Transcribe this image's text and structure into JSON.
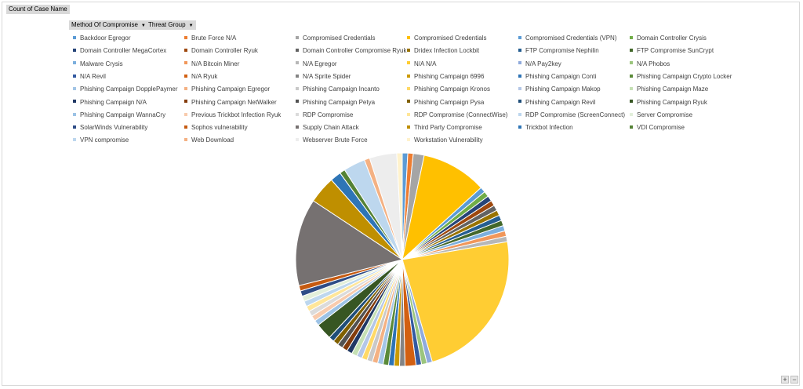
{
  "pivot": {
    "value_field": "Count of Case Name",
    "row_fields": [
      "Method Of Compromise",
      "Threat Group"
    ]
  },
  "chart_data": {
    "type": "pie",
    "categories": [
      "Backdoor Egregor",
      "Brute Force N/A",
      "Compromised Credentials",
      "Compromised Credentials",
      "Compromised Credentials (VPN)",
      "Domain Controller Crysis",
      "Domain Controller MegaCortex",
      "Domain Controller Ryuk",
      "Domain Controller Compromise Ryuk",
      "Dridex Infection Lockbit",
      "FTP Compromise Nephilin",
      "FTP Compromise SunCrypt",
      "Malware Crysis",
      "N/A Bitcoin Miner",
      "N/A Egregor",
      "N/A N/A",
      "N/A Pay2key",
      "N/A Phobos",
      "N/A Revil",
      "N/A Ryuk",
      "N/A Sprite Spider",
      "Phishing Campaign 6996",
      "Phishing Campaign Conti",
      "Phishing Campaign Crypto Locker",
      "Phishing Campaign DopplePaymer",
      "Phishing Campaign Egregor",
      "Phishing Campaign Incanto",
      "Phishing Campaign Kronos",
      "Phishing Campaign Makop",
      "Phishing Campaign Maze",
      "Phishing Campaign N/A",
      "Phishing Campaign NetWalker",
      "Phishing Campaign Petya",
      "Phishing Campaign Pysa",
      "Phishing Campaign Revil",
      "Phishing Campaign Ryuk",
      "Phishing Campaign WannaCry",
      "Previous Trickbot Infection Ryuk",
      "RDP Compromise",
      "RDP Compromise (ConnectWise)",
      "RDP Compromise (ScreenConnect)",
      "Server Compromise",
      "SolarWinds Vulnerability",
      "Sophos vulnerability",
      "Supply Chain Attack",
      "Third Party Compromise",
      "Trickbot Infection",
      "VDI Compromise",
      "VPN compromise",
      "Web Download",
      "Webserver Brute Force",
      "Workstation Vulnerability"
    ],
    "values": [
      1,
      1,
      2,
      12,
      1,
      1,
      1,
      1,
      1,
      1,
      1,
      1,
      1,
      1,
      1,
      28,
      1,
      1,
      1,
      2,
      1,
      1,
      1,
      1,
      1,
      1,
      1,
      1,
      1,
      1,
      1,
      1,
      1,
      1,
      1,
      3,
      1,
      1,
      1,
      1,
      1,
      1,
      1,
      1,
      16,
      5,
      2,
      1,
      4,
      1,
      5,
      1
    ],
    "colors": [
      "#5b9bd5",
      "#ed7d31",
      "#a5a5a5",
      "#ffc000",
      "#5b9bd5",
      "#70ad47",
      "#264478",
      "#9e480e",
      "#636363",
      "#997300",
      "#255e91",
      "#43682b",
      "#7cafdd",
      "#f1975a",
      "#b7b7b7",
      "#ffcd33",
      "#8faadc",
      "#9bc57d",
      "#335aa1",
      "#d26012",
      "#848484",
      "#cc9a00",
      "#2d73b5",
      "#5a8a39",
      "#a3c5e6",
      "#f4b183",
      "#c9c9c9",
      "#ffd966",
      "#b4c7e7",
      "#c5e0b4",
      "#203864",
      "#843c0c",
      "#525252",
      "#806000",
      "#1f4e79",
      "#375623",
      "#9dc3e6",
      "#f8cbad",
      "#dbdbdb",
      "#ffe699",
      "#bdd7ee",
      "#e2efda",
      "#2e4d87",
      "#c55a11",
      "#767171",
      "#bf8f00",
      "#2e75b6",
      "#548235",
      "#bdd7ee",
      "#f4b183",
      "#ededed",
      "#fff2cc"
    ],
    "legend_position": "top",
    "title": ""
  },
  "zoom": {
    "plus": "+",
    "minus": "−"
  }
}
